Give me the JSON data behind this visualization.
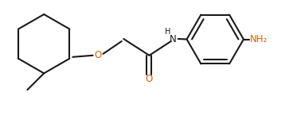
{
  "bg_color": "#ffffff",
  "bond_color": "#1a1a1a",
  "atom_color_O": "#e06000",
  "atom_color_NH2": "#e06000",
  "atom_color_NH": "#1a1a1a",
  "line_width": 1.5,
  "font_size_atom": 8.5,
  "fig_width": 3.73,
  "fig_height": 1.55,
  "xlim": [
    0.0,
    7.4
  ],
  "ylim": [
    0.0,
    3.1
  ]
}
